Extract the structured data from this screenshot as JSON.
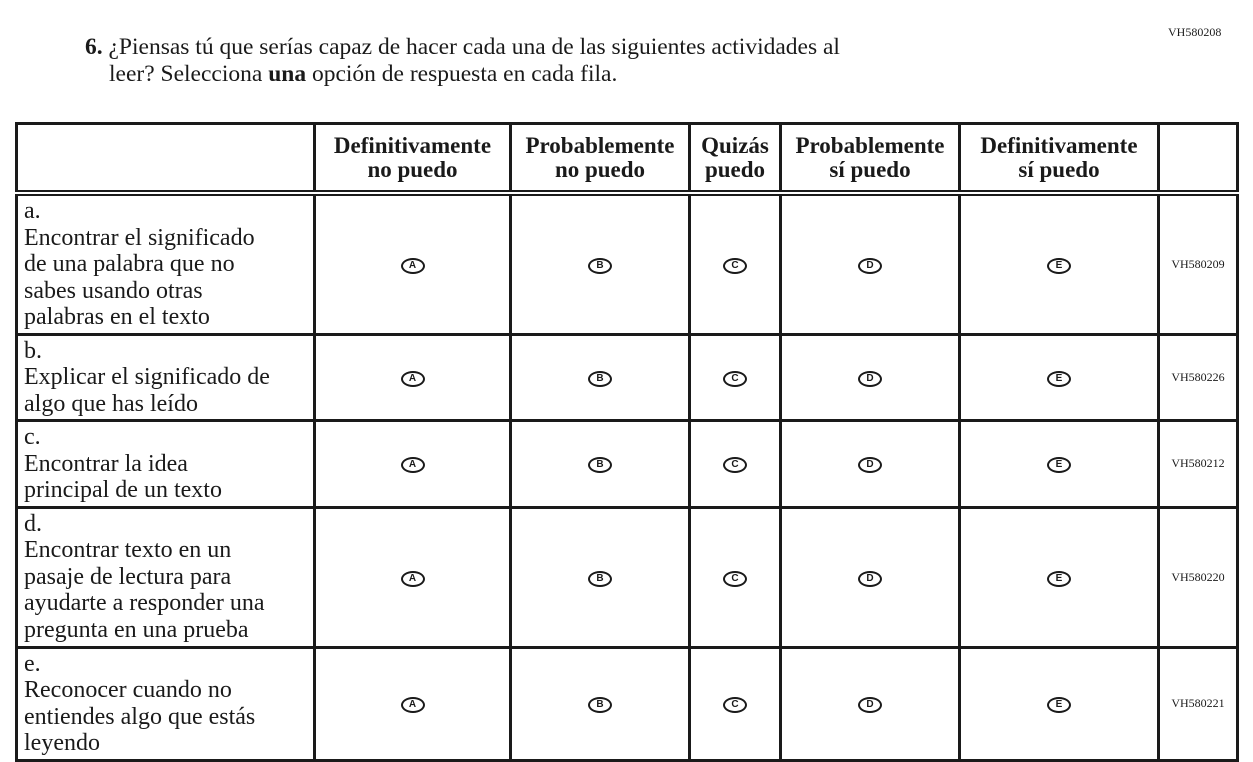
{
  "question_code": "VH580208",
  "question": {
    "number": "6.",
    "text_before": "¿Piensas tú que serías capaz de hacer cada una de las siguientes actividades al",
    "text_line2_start": "leer? Selecciona ",
    "emphasis": "una",
    "text_line2_end": " opción de respuesta en cada fila."
  },
  "columns": [
    "Definitivamente no puedo",
    "Probablemente no puedo",
    "Quizás puedo",
    "Probablemente sí puedo",
    "Definitivamente sí puedo"
  ],
  "column_lines": [
    [
      "Definitivamente",
      "no puedo"
    ],
    [
      "Probablemente",
      "no puedo"
    ],
    [
      "Quizás",
      "puedo"
    ],
    [
      "Probablemente",
      "sí puedo"
    ],
    [
      "Definitivamente",
      "sí puedo"
    ]
  ],
  "option_letters": [
    "A",
    "B",
    "C",
    "D",
    "E"
  ],
  "rows": [
    {
      "letter": "a.",
      "text": "Encontrar el significado de una palabra que no sabes usando otras palabras en el texto",
      "code": "VH580209"
    },
    {
      "letter": "b.",
      "text": "Explicar el significado de algo que has leído",
      "code": "VH580226"
    },
    {
      "letter": "c.",
      "text": "Encontrar la idea principal de un texto",
      "code": "VH580212"
    },
    {
      "letter": "d.",
      "text": "Encontrar texto en un pasaje de lectura para ayudarte a responder una pregunta en una prueba",
      "code": "VH580220"
    },
    {
      "letter": "e.",
      "text": "Reconocer cuando no entiendes algo que estás leyendo",
      "code": "VH580221"
    }
  ]
}
